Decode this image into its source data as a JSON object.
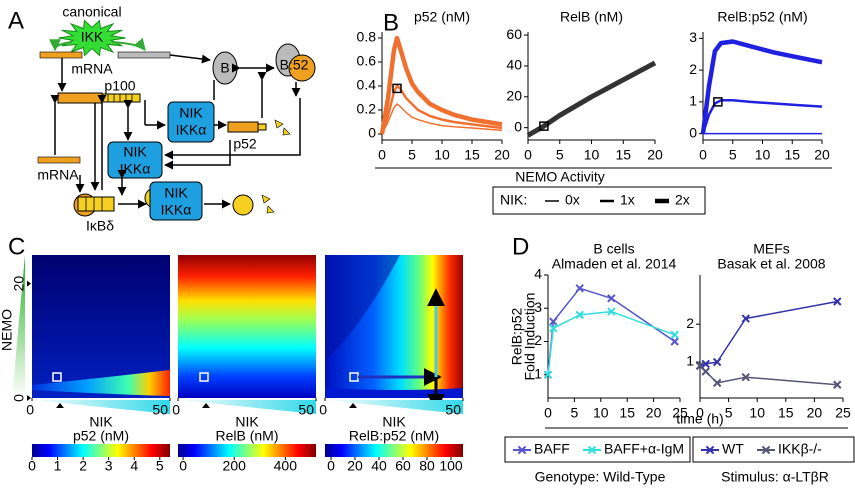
{
  "panel_labels": [
    "A",
    "B",
    "C",
    "D"
  ],
  "diagram": {
    "canonical": "canonical",
    "ikk": "IKK",
    "mrna_top": "mRNA",
    "b": "B",
    "b52": "B:52",
    "p100": "p100",
    "nik_1": "NIK",
    "ikka_1": "IKKα",
    "nik_2": "NIK",
    "ikka_2": "IKKα",
    "nik_3": "NIK",
    "ikka_3": "IKKα",
    "p52": "p52",
    "mrna_bottom": "mRNA",
    "ikbd": "IκBδ"
  },
  "panel_b": {
    "xlabel": "NEMO Activity",
    "legend_title": "NIK:"
  },
  "panel_d": {
    "xlabel": "time (h)",
    "legend_note_1": "Genotype: Wild-Type",
    "legend_note_2": "Stimulus: α-LTβR"
  },
  "heatmaps": {
    "xlabel": "NIK",
    "xlim": [
      0,
      50
    ],
    "xticks": [
      0,
      50
    ],
    "ylabel": "NEMO",
    "ylim": [
      0,
      25
    ],
    "yticks": [
      0,
      20
    ],
    "panels": [
      {
        "colorbar_label": "p52 (nM)",
        "clim": [
          0,
          5.4
        ],
        "colorbar_ticks": [
          0,
          1,
          2,
          3,
          4,
          5
        ]
      },
      {
        "colorbar_label": "RelB (nM)",
        "clim": [
          -20,
          520
        ],
        "colorbar_ticks": [
          0,
          200,
          400
        ]
      },
      {
        "colorbar_label": "RelB:p52 (nM)",
        "clim": [
          -5,
          110
        ],
        "colorbar_ticks": [
          0,
          20,
          40,
          60,
          80,
          100
        ]
      }
    ]
  },
  "chart_data": [
    {
      "type": "line",
      "title": "p52 (nM)",
      "xlim": [
        0,
        20
      ],
      "xticks": [
        0,
        5,
        10,
        15,
        20
      ],
      "ylim": [
        -0.05,
        0.85
      ],
      "yticks": [
        0,
        0.2,
        0.4,
        0.6,
        0.8
      ],
      "x": [
        0,
        1,
        2,
        2.5,
        3,
        4,
        5,
        6,
        8,
        10,
        12,
        15,
        20
      ],
      "series": [
        {
          "name": "0x",
          "color": "#f07030",
          "width": 1.5,
          "values": [
            0,
            0.1,
            0.22,
            0.25,
            0.23,
            0.18,
            0.14,
            0.12,
            0.09,
            0.07,
            0.06,
            0.05,
            0.03
          ]
        },
        {
          "name": "1x",
          "color": "#f07030",
          "width": 2.5,
          "values": [
            0,
            0.15,
            0.35,
            0.4,
            0.38,
            0.3,
            0.25,
            0.2,
            0.15,
            0.12,
            0.1,
            0.08,
            0.05
          ]
        },
        {
          "name": "2x",
          "color": "#f07030",
          "width": 4.5,
          "values": [
            0,
            0.3,
            0.7,
            0.8,
            0.72,
            0.55,
            0.42,
            0.35,
            0.25,
            0.2,
            0.16,
            0.12,
            0.08
          ]
        }
      ],
      "highlight": {
        "x": 2.5,
        "y": 0.38
      }
    },
    {
      "type": "line",
      "title": "RelB (nM)",
      "xlim": [
        0,
        20
      ],
      "xticks": [
        0,
        5,
        10,
        15,
        20
      ],
      "ylim": [
        -8,
        62
      ],
      "yticks": [
        0,
        20,
        40,
        60
      ],
      "x": [
        0,
        2.5,
        5,
        10,
        15,
        20
      ],
      "series": [
        {
          "color": "#333333",
          "width": 5,
          "values": [
            -5,
            1,
            8,
            20,
            31,
            42
          ]
        }
      ],
      "highlight": {
        "x": 2.5,
        "y": 1
      }
    },
    {
      "type": "line",
      "title": "RelB:p52 (nM)",
      "xlim": [
        0,
        20
      ],
      "xticks": [
        0,
        5,
        10,
        15,
        20
      ],
      "ylim": [
        -0.2,
        3.2
      ],
      "yticks": [
        0,
        1,
        2,
        3
      ],
      "x": [
        0,
        1,
        2,
        3,
        5,
        8,
        12,
        16,
        20
      ],
      "series": [
        {
          "color": "#2020e0",
          "width": 1.5,
          "values": [
            0,
            0,
            0,
            0,
            0,
            0,
            0,
            0,
            0
          ]
        },
        {
          "color": "#2020e0",
          "width": 2.5,
          "values": [
            0,
            0.6,
            0.95,
            1.05,
            1.05,
            1.0,
            0.95,
            0.9,
            0.85
          ]
        },
        {
          "color": "#2020e0",
          "width": 4.5,
          "values": [
            0,
            1.5,
            2.6,
            2.85,
            2.9,
            2.75,
            2.55,
            2.4,
            2.25
          ]
        }
      ],
      "highlight": {
        "x": 2.5,
        "y": 1
      }
    },
    {
      "type": "line",
      "title": "B cells",
      "subtitle": "Almaden et al. 2014",
      "ylabel": [
        "RelB:p52",
        "Fold Induction"
      ],
      "xlim": [
        0,
        25
      ],
      "xticks": [
        0,
        5,
        10,
        15,
        20,
        25
      ],
      "ylim": [
        0.3,
        4
      ],
      "yticks": [
        1,
        2,
        3,
        4
      ],
      "x": [
        0,
        1,
        6,
        12,
        24
      ],
      "series": [
        {
          "name": "BAFF",
          "color": "#5555cc",
          "width": 1.5,
          "marker": "x",
          "values": [
            1,
            2.6,
            3.6,
            3.3,
            2.0
          ]
        },
        {
          "name": "BAFF+α-IgM",
          "color": "#33dddd",
          "width": 1.5,
          "marker": "x",
          "values": [
            1,
            2.4,
            2.8,
            2.9,
            2.2
          ]
        }
      ]
    },
    {
      "type": "line",
      "title": "MEFs",
      "subtitle": "Basak et al. 2008",
      "xlim": [
        0,
        25
      ],
      "xticks": [
        0,
        5,
        10,
        15,
        20,
        25
      ],
      "ylim": [
        0.05,
        3.3
      ],
      "yticks": [
        1,
        2
      ],
      "x": [
        0,
        1,
        3,
        8,
        24
      ],
      "series": [
        {
          "name": "WT",
          "color": "#3333aa",
          "width": 1.5,
          "marker": "x",
          "values": [
            0.9,
            0.95,
            1.0,
            2.15,
            2.6
          ]
        },
        {
          "name": "IKKβ-/-",
          "color": "#555577",
          "width": 1.5,
          "marker": "x",
          "values": [
            0.9,
            0.75,
            0.45,
            0.6,
            0.4
          ]
        }
      ]
    }
  ]
}
